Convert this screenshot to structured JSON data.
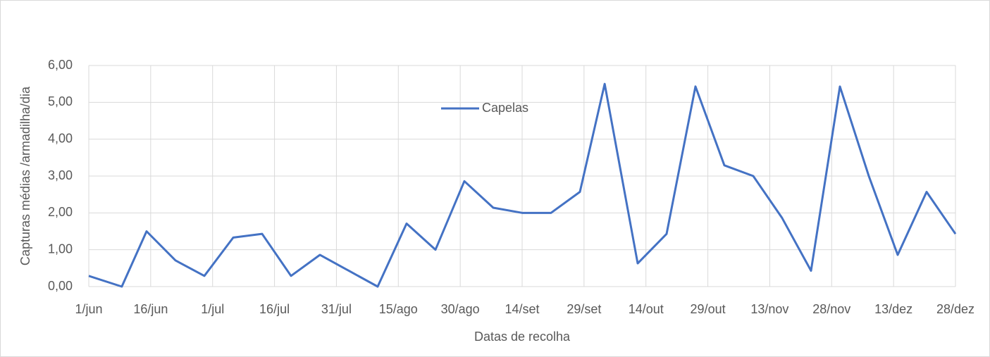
{
  "chart_data": {
    "type": "line",
    "x_label": "Datas de recolha",
    "y_label": "Capturas médias /armadilha/dia",
    "x": [
      "06-01",
      "06-09",
      "06-15",
      "06-22",
      "06-29",
      "07-06",
      "07-13",
      "07-20",
      "07-27",
      "08-03",
      "08-10",
      "08-17",
      "08-24",
      "08-31",
      "09-07",
      "09-14",
      "09-21",
      "09-28",
      "10-04",
      "10-12",
      "10-19",
      "10-26",
      "11-02",
      "11-09",
      "11-16",
      "11-23",
      "11-30",
      "12-07",
      "12-14",
      "12-21",
      "12-28"
    ],
    "series": [
      {
        "name": "Capelas",
        "color": "#4472c4",
        "values": [
          0.29,
          0,
          1.5,
          0.71,
          0.29,
          1.33,
          1.43,
          0.29,
          0.86,
          0.43,
          0,
          1.71,
          1.0,
          2.86,
          2.14,
          2.0,
          2.0,
          2.57,
          5.5,
          0.63,
          1.43,
          5.43,
          3.29,
          3.0,
          1.86,
          0.43,
          5.43,
          3.0,
          0.86,
          2.57,
          1.43
        ]
      }
    ],
    "xlim": [
      "06-01",
      "12-28"
    ],
    "xticks": [
      {
        "value": "06-01",
        "label": "1/jun"
      },
      {
        "value": "06-16",
        "label": "16/jun"
      },
      {
        "value": "07-01",
        "label": "1/jul"
      },
      {
        "value": "07-16",
        "label": "16/jul"
      },
      {
        "value": "07-31",
        "label": "31/jul"
      },
      {
        "value": "08-15",
        "label": "15/ago"
      },
      {
        "value": "08-30",
        "label": "30/ago"
      },
      {
        "value": "09-14",
        "label": "14/set"
      },
      {
        "value": "09-29",
        "label": "29/set"
      },
      {
        "value": "10-14",
        "label": "14/out"
      },
      {
        "value": "10-29",
        "label": "29/out"
      },
      {
        "value": "11-13",
        "label": "13/nov"
      },
      {
        "value": "11-28",
        "label": "28/nov"
      },
      {
        "value": "12-13",
        "label": "13/dez"
      },
      {
        "value": "12-28",
        "label": "28/dez"
      }
    ],
    "ylim": [
      0,
      6
    ],
    "yticks": [
      {
        "value": 0,
        "label": "0,00"
      },
      {
        "value": 1,
        "label": "1,00"
      },
      {
        "value": 2,
        "label": "2,00"
      },
      {
        "value": 3,
        "label": "3,00"
      },
      {
        "value": 4,
        "label": "4,00"
      },
      {
        "value": 5,
        "label": "5,00"
      },
      {
        "value": 6,
        "label": "6,00"
      }
    ],
    "grid": true,
    "legend": "top"
  }
}
